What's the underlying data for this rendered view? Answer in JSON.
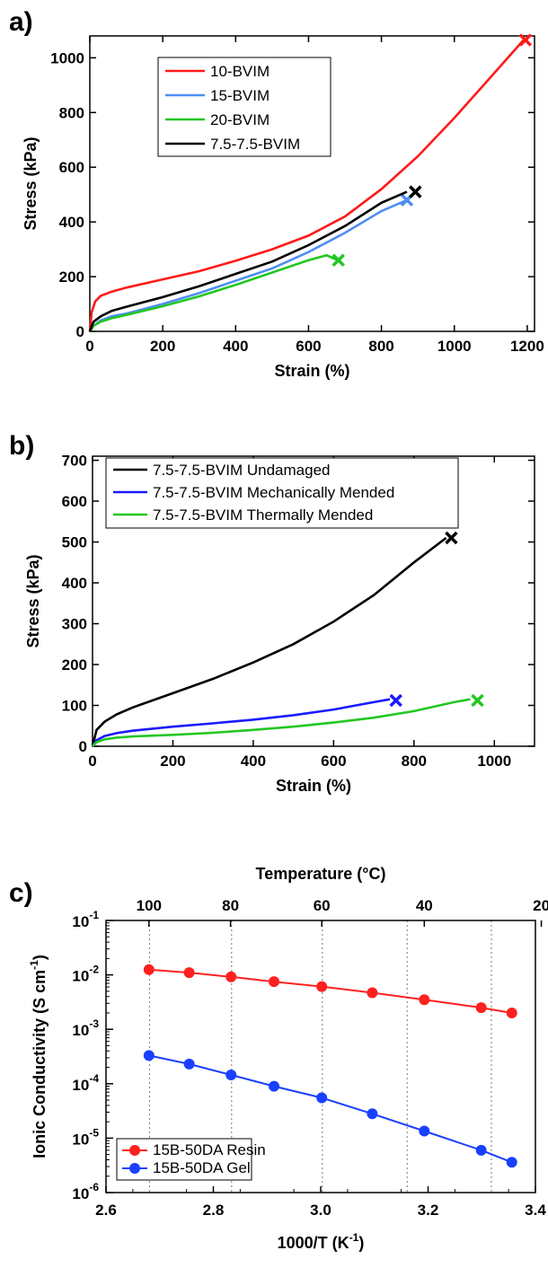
{
  "panels": {
    "a": {
      "label": "a)"
    },
    "b": {
      "label": "b)"
    },
    "c": {
      "label": "c)"
    }
  },
  "chart_data": [
    {
      "type": "line",
      "title": "",
      "xlabel": "Strain (%)",
      "ylabel": "Stress (kPa)",
      "xlim": [
        0,
        1220
      ],
      "ylim": [
        0,
        1080
      ],
      "xticks": [
        0,
        200,
        400,
        600,
        800,
        1000,
        1200
      ],
      "yticks": [
        0,
        200,
        400,
        600,
        800,
        1000
      ],
      "legend_position": "top-left",
      "series": [
        {
          "name": "10-BVIM",
          "color": "#ff1a1a",
          "x": [
            0,
            5,
            15,
            30,
            60,
            100,
            200,
            300,
            400,
            500,
            600,
            700,
            800,
            900,
            1000,
            1100,
            1190
          ],
          "y": [
            0,
            70,
            110,
            130,
            145,
            160,
            190,
            220,
            258,
            300,
            350,
            420,
            520,
            640,
            780,
            930,
            1065
          ],
          "break": {
            "x": 1195,
            "y": 1065
          }
        },
        {
          "name": "15-BVIM",
          "color": "#4f8ef5",
          "x": [
            0,
            10,
            30,
            60,
            100,
            200,
            300,
            400,
            500,
            600,
            700,
            800,
            870
          ],
          "y": [
            0,
            20,
            40,
            55,
            65,
            100,
            140,
            185,
            230,
            290,
            360,
            440,
            480
          ],
          "break": {
            "x": 870,
            "y": 480
          }
        },
        {
          "name": "20-BVIM",
          "color": "#22c722",
          "x": [
            0,
            10,
            30,
            60,
            100,
            200,
            300,
            400,
            500,
            600,
            650,
            680
          ],
          "y": [
            0,
            20,
            35,
            48,
            60,
            92,
            128,
            170,
            215,
            260,
            278,
            260
          ],
          "break": {
            "x": 682,
            "y": 260
          }
        },
        {
          "name": "7.5-7.5-BVIM",
          "color": "#000000",
          "x": [
            0,
            10,
            30,
            60,
            100,
            200,
            300,
            400,
            500,
            600,
            700,
            800,
            870
          ],
          "y": [
            0,
            35,
            55,
            75,
            90,
            125,
            165,
            210,
            255,
            315,
            385,
            470,
            510
          ],
          "break": {
            "x": 893,
            "y": 510
          }
        }
      ]
    },
    {
      "type": "line",
      "title": "",
      "xlabel": "Strain (%)",
      "ylabel": "Stress (kPa)",
      "xlim": [
        0,
        1100
      ],
      "ylim": [
        0,
        710
      ],
      "xticks": [
        0,
        200,
        400,
        600,
        800,
        1000
      ],
      "yticks": [
        0,
        100,
        200,
        300,
        400,
        500,
        600,
        700
      ],
      "legend_position": "top-left",
      "series": [
        {
          "name": "7.5-7.5-BVIM Undamaged",
          "color": "#000000",
          "x": [
            0,
            10,
            30,
            60,
            100,
            200,
            300,
            400,
            500,
            600,
            700,
            800,
            880
          ],
          "y": [
            0,
            40,
            60,
            78,
            95,
            130,
            165,
            205,
            250,
            305,
            370,
            450,
            510
          ],
          "break": {
            "x": 893,
            "y": 510
          }
        },
        {
          "name": "7.5-7.5-BVIM Mechanically Mended",
          "color": "#1a1aff",
          "x": [
            0,
            10,
            30,
            60,
            100,
            200,
            300,
            400,
            500,
            600,
            700,
            740
          ],
          "y": [
            0,
            15,
            25,
            32,
            38,
            48,
            56,
            65,
            76,
            90,
            108,
            115
          ],
          "break": {
            "x": 755,
            "y": 112
          }
        },
        {
          "name": "7.5-7.5-BVIM Thermally Mended",
          "color": "#22c722",
          "x": [
            0,
            10,
            30,
            60,
            100,
            200,
            300,
            400,
            500,
            600,
            700,
            800,
            900,
            940
          ],
          "y": [
            0,
            10,
            17,
            21,
            24,
            28,
            33,
            40,
            48,
            58,
            70,
            86,
            108,
            115
          ],
          "break": {
            "x": 958,
            "y": 112
          }
        }
      ]
    },
    {
      "type": "scatter",
      "title": "",
      "xlabel": "1000/T (K",
      "xlabel_sup": "-1",
      "xlabel_end": ")",
      "ylabel": "Ionic Conductivity (S cm",
      "ylabel_sup": "-1",
      "ylabel_end": ")",
      "top_xlabel": "Temperature (°C)",
      "xlim": [
        2.6,
        3.4
      ],
      "ylim": [
        1e-06,
        0.1
      ],
      "yscale": "log",
      "xticks": [
        2.6,
        2.8,
        3.0,
        3.2,
        3.4
      ],
      "xtick_labels": [
        "2.6",
        "2.8",
        "3.0",
        "3.2",
        "3.4"
      ],
      "yticks": [
        1e-06,
        1e-05,
        0.0001,
        0.001,
        0.01,
        0.1
      ],
      "ytick_labels": [
        {
          "base": "10",
          "exp": "-6"
        },
        {
          "base": "10",
          "exp": "-5"
        },
        {
          "base": "10",
          "exp": "-4"
        },
        {
          "base": "10",
          "exp": "-3"
        },
        {
          "base": "10",
          "exp": "-2"
        },
        {
          "base": "10",
          "exp": "-1"
        }
      ],
      "top_ticks": [
        {
          "label": "100",
          "x": 2.68
        },
        {
          "label": "80",
          "x": 2.832
        },
        {
          "label": "60",
          "x": 3.002
        },
        {
          "label": "40",
          "x": 3.193
        },
        {
          "label": "20",
          "x": 3.411
        }
      ],
      "gridlines_x": [
        2.681,
        2.834,
        3.003,
        3.161,
        3.318
      ],
      "grid": "vertical dotted",
      "legend_position": "bottom-left",
      "series": [
        {
          "name": "15B-50DA Resin",
          "color": "#ff2020",
          "line_color": "#ff2020",
          "x": [
            2.68,
            2.755,
            2.833,
            2.913,
            3.002,
            3.096,
            3.193,
            3.299,
            3.356
          ],
          "y": [
            0.0125,
            0.011,
            0.0092,
            0.0075,
            0.0061,
            0.0047,
            0.0035,
            0.0025,
            0.002
          ]
        },
        {
          "name": "15B-50DA Gel",
          "color": "#1a40ff",
          "line_color": "#1a40ff",
          "x": [
            2.68,
            2.755,
            2.833,
            2.913,
            3.002,
            3.096,
            3.193,
            3.299,
            3.356
          ],
          "y": [
            0.00033,
            0.00023,
            0.000145,
            9e-05,
            5.5e-05,
            2.8e-05,
            1.35e-05,
            6e-06,
            3.6e-06
          ]
        }
      ]
    }
  ]
}
